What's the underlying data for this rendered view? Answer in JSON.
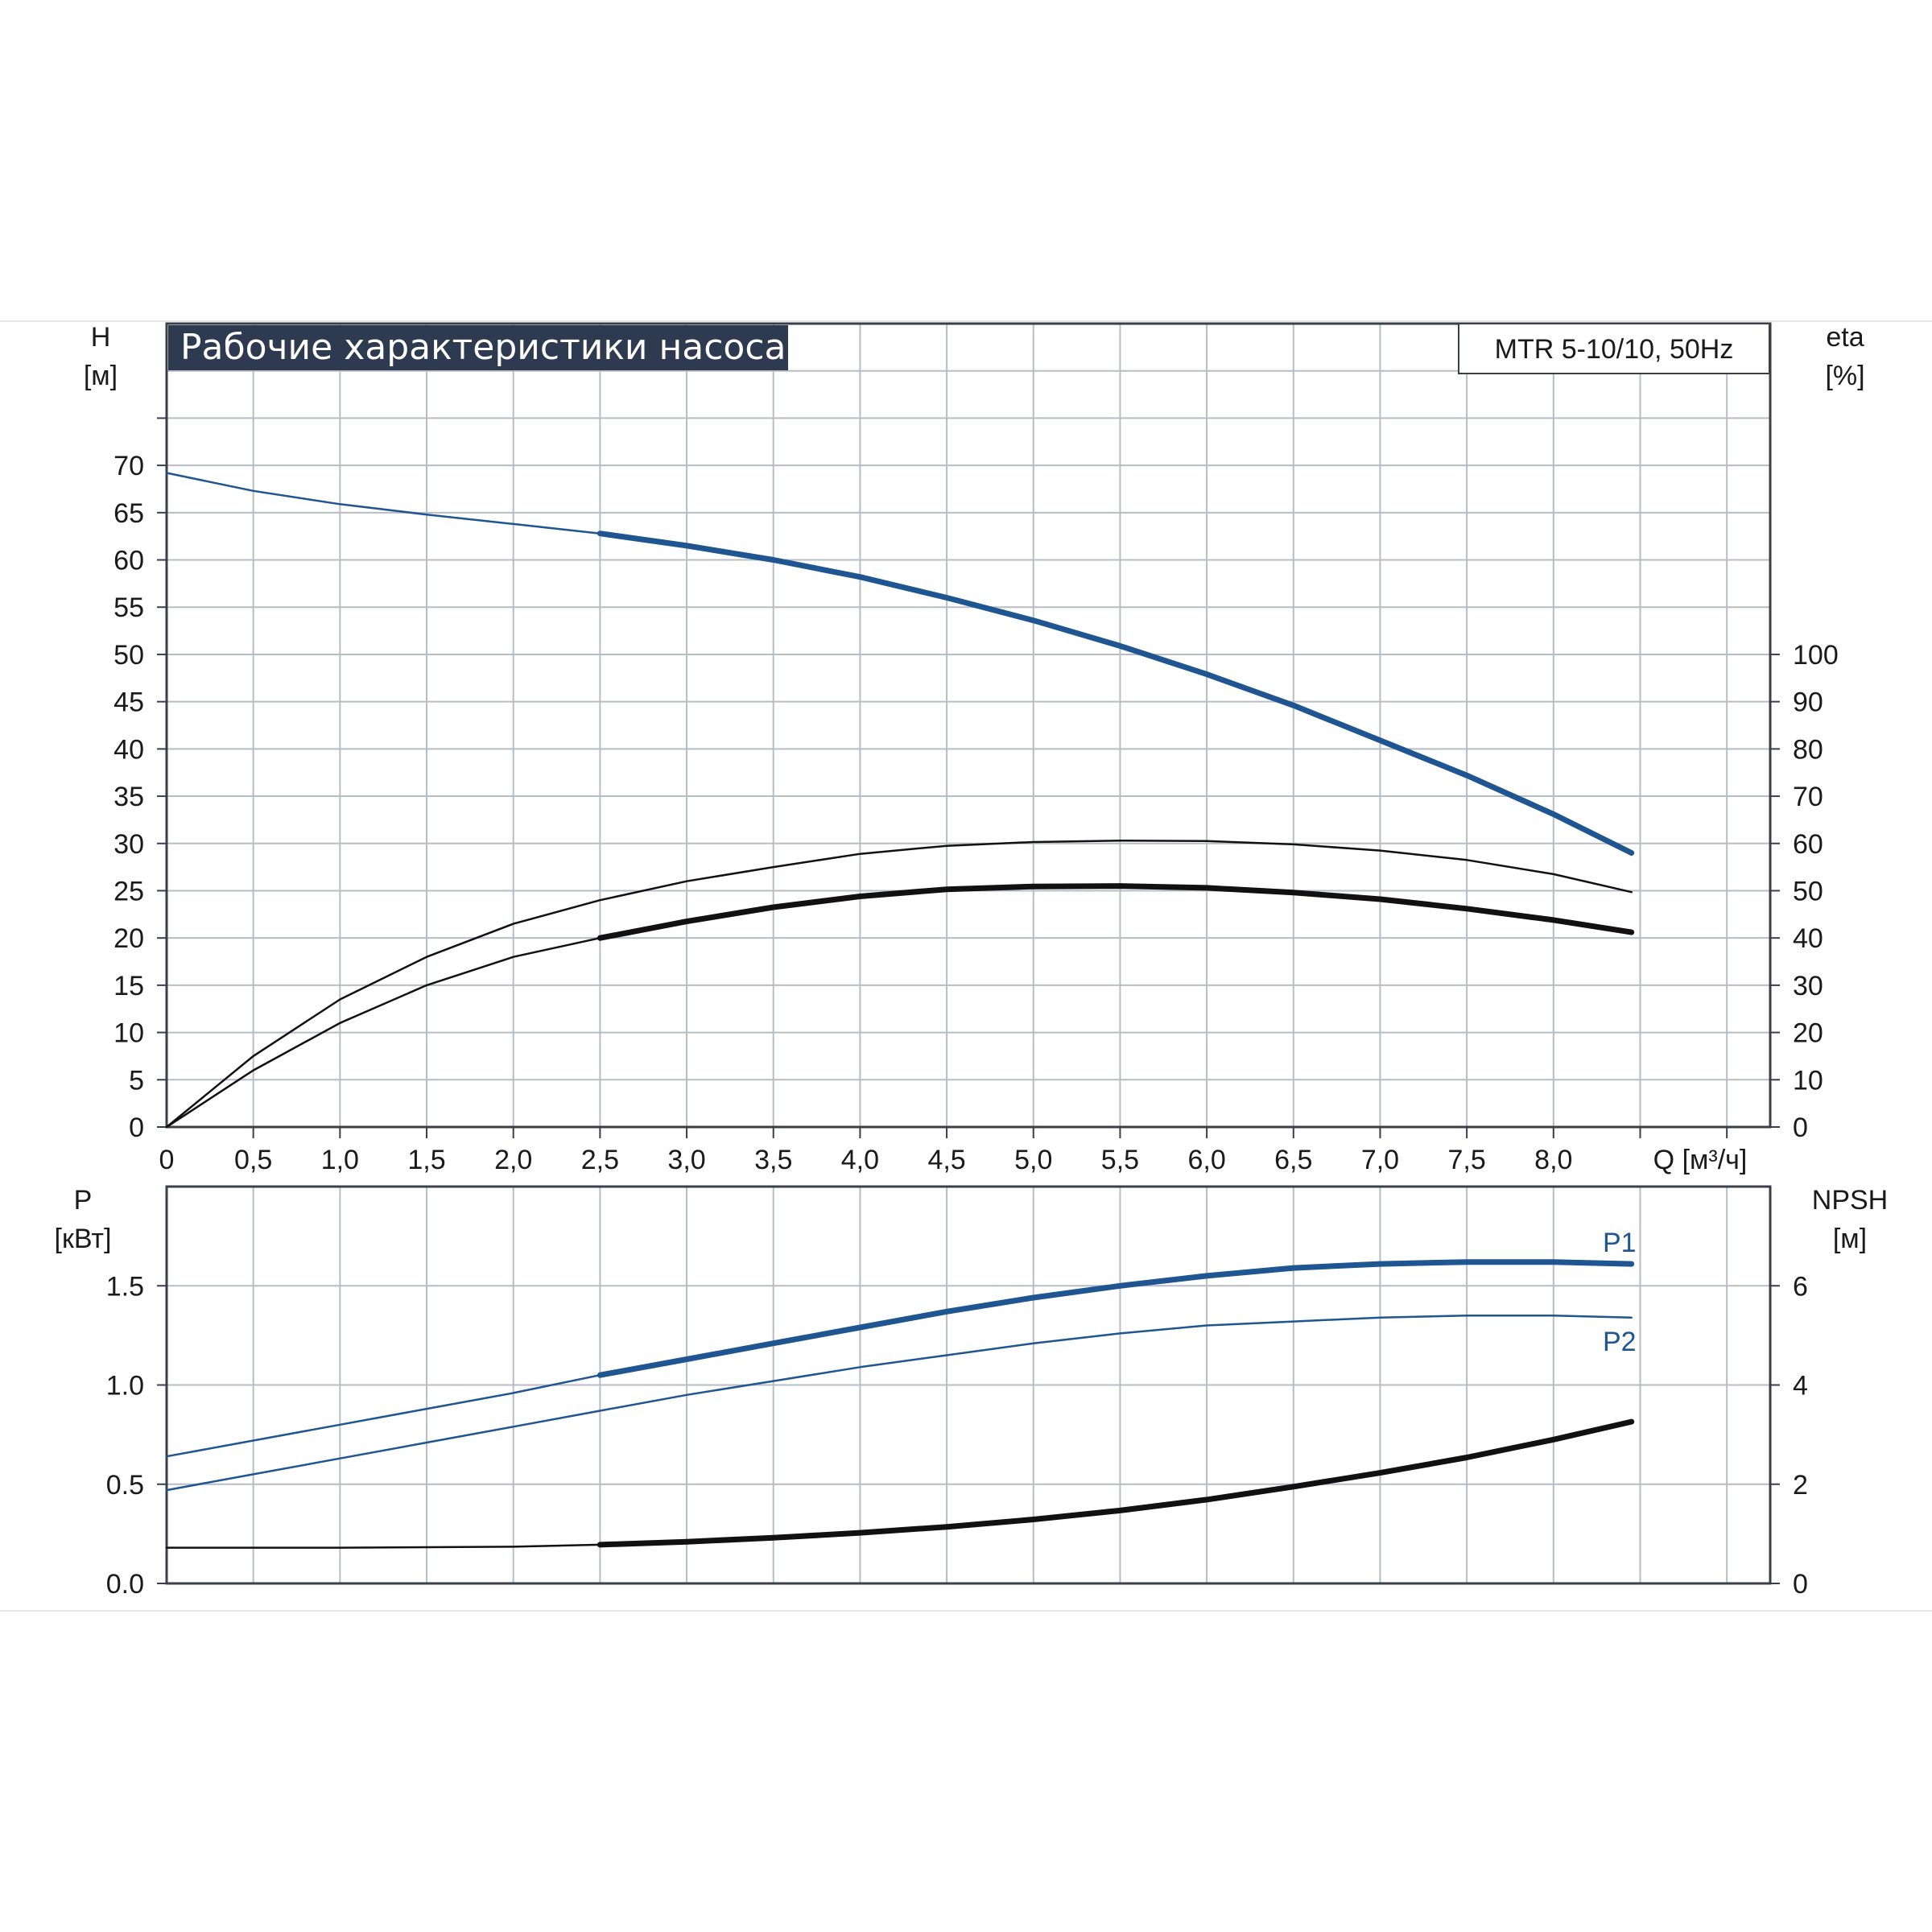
{
  "header": {
    "title": "Рабочие характеристики насоса",
    "model": "MTR 5-10/10, 50Hz"
  },
  "colors": {
    "grid": "#b8bcc4",
    "frame": "#3a3f4a",
    "title_bg": "#2e3a4f",
    "blue": "#1f5591",
    "black": "#111111"
  },
  "chart_data": [
    {
      "type": "line",
      "name": "top",
      "x_unit": "Q [м³/ч]",
      "x_range": [
        0,
        9.25
      ],
      "x_ticks": [
        {
          "v": 0,
          "label": "0"
        },
        {
          "v": 0.5,
          "label": "0,5"
        },
        {
          "v": 1.0,
          "label": "1,0"
        },
        {
          "v": 1.5,
          "label": "1,5"
        },
        {
          "v": 2.0,
          "label": "2,0"
        },
        {
          "v": 2.5,
          "label": "2,5"
        },
        {
          "v": 3.0,
          "label": "3,0"
        },
        {
          "v": 3.5,
          "label": "3,5"
        },
        {
          "v": 4.0,
          "label": "4,0"
        },
        {
          "v": 4.5,
          "label": "4,5"
        },
        {
          "v": 5.0,
          "label": "5,0"
        },
        {
          "v": 5.5,
          "label": "5,5"
        },
        {
          "v": 6.0,
          "label": "6,0"
        },
        {
          "v": 6.5,
          "label": "6,5"
        },
        {
          "v": 7.0,
          "label": "7,0"
        },
        {
          "v": 7.5,
          "label": "7,5"
        },
        {
          "v": 8.0,
          "label": "8,0"
        }
      ],
      "y_left": {
        "label_line1": "H",
        "label_line2": "[м]",
        "range": [
          0,
          85
        ],
        "ticks": [
          0,
          5,
          10,
          15,
          20,
          25,
          30,
          35,
          40,
          45,
          50,
          55,
          60,
          65,
          70
        ]
      },
      "y_right": {
        "label_line1": "eta",
        "label_line2": "[%]",
        "range": [
          0,
          170
        ],
        "ticks": [
          0,
          10,
          20,
          30,
          40,
          50,
          60,
          70,
          80,
          90,
          100
        ]
      },
      "grid": true,
      "series": [
        {
          "key": "head",
          "axis": "left",
          "color": "blue",
          "thin_until": 2.5,
          "x": [
            0,
            0.5,
            1.0,
            1.5,
            2.0,
            2.5,
            3.0,
            3.5,
            4.0,
            4.5,
            5.0,
            5.5,
            6.0,
            6.5,
            7.0,
            7.5,
            8.0,
            8.45
          ],
          "y": [
            69.2,
            67.3,
            65.9,
            64.8,
            63.8,
            62.8,
            61.5,
            60.0,
            58.2,
            56.0,
            53.6,
            50.9,
            47.9,
            44.6,
            40.9,
            37.2,
            33.1,
            29.0
          ]
        },
        {
          "key": "eta_upper",
          "axis": "right",
          "color": "black",
          "thin_until": 9,
          "x": [
            0,
            0.5,
            1.0,
            1.5,
            2.0,
            2.5,
            3.0,
            3.5,
            4.0,
            4.5,
            5.0,
            5.5,
            6.0,
            6.5,
            7.0,
            7.5,
            8.0,
            8.45
          ],
          "y": [
            0,
            15,
            27,
            36,
            43,
            48,
            52,
            55,
            57.8,
            59.5,
            60.3,
            60.6,
            60.5,
            59.8,
            58.5,
            56.5,
            53.5,
            49.7
          ]
        },
        {
          "key": "eta_lower",
          "axis": "right",
          "color": "black",
          "thin_until": 2.5,
          "x": [
            0,
            0.5,
            1.0,
            1.5,
            2.0,
            2.5,
            3.0,
            3.5,
            4.0,
            4.5,
            5.0,
            5.5,
            6.0,
            6.5,
            7.0,
            7.5,
            8.0,
            8.45
          ],
          "y": [
            0,
            12,
            22,
            30,
            36,
            40,
            43.5,
            46.5,
            48.8,
            50.3,
            50.9,
            51.0,
            50.6,
            49.6,
            48.2,
            46.2,
            43.8,
            41.2
          ]
        }
      ]
    },
    {
      "type": "line",
      "name": "bottom",
      "x_range": [
        0,
        9.25
      ],
      "y_left": {
        "label_line1": "P",
        "label_line2": "[кВт]",
        "range": [
          0,
          2.0
        ],
        "ticks": [
          {
            "v": 0,
            "label": "0.0"
          },
          {
            "v": 0.5,
            "label": "0.5"
          },
          {
            "v": 1.0,
            "label": "1.0"
          },
          {
            "v": 1.5,
            "label": "1.5"
          }
        ]
      },
      "y_right": {
        "label_line1": "NPSH",
        "label_line2": "[м]",
        "range": [
          0,
          8
        ],
        "ticks": [
          0,
          2,
          4,
          6
        ]
      },
      "grid": true,
      "series": [
        {
          "key": "p1",
          "name": "P1",
          "axis": "left",
          "color": "blue",
          "thin_until": 2.5,
          "x": [
            0,
            0.5,
            1.0,
            1.5,
            2.0,
            2.5,
            3.0,
            3.5,
            4.0,
            4.5,
            5.0,
            5.5,
            6.0,
            6.5,
            7.0,
            7.5,
            8.0,
            8.45
          ],
          "y": [
            0.64,
            0.72,
            0.8,
            0.88,
            0.96,
            1.05,
            1.13,
            1.21,
            1.29,
            1.37,
            1.44,
            1.5,
            1.55,
            1.59,
            1.61,
            1.62,
            1.62,
            1.61
          ]
        },
        {
          "key": "p2",
          "name": "P2",
          "axis": "left",
          "color": "blue",
          "thin_until": 9,
          "x": [
            0,
            0.5,
            1.0,
            1.5,
            2.0,
            2.5,
            3.0,
            3.5,
            4.0,
            4.5,
            5.0,
            5.5,
            6.0,
            6.5,
            7.0,
            7.5,
            8.0,
            8.45
          ],
          "y": [
            0.47,
            0.55,
            0.63,
            0.71,
            0.79,
            0.87,
            0.95,
            1.02,
            1.09,
            1.15,
            1.21,
            1.26,
            1.3,
            1.32,
            1.34,
            1.35,
            1.35,
            1.34
          ]
        },
        {
          "key": "npsh",
          "axis": "right",
          "color": "black",
          "thin_until": 2.5,
          "x": [
            0,
            0.5,
            1.0,
            1.5,
            2.0,
            2.5,
            3.0,
            3.5,
            4.0,
            4.5,
            5.0,
            5.5,
            6.0,
            6.5,
            7.0,
            7.5,
            8.0,
            8.45
          ],
          "y": [
            0.72,
            0.72,
            0.72,
            0.73,
            0.74,
            0.78,
            0.84,
            0.92,
            1.02,
            1.14,
            1.29,
            1.47,
            1.69,
            1.95,
            2.23,
            2.54,
            2.9,
            3.26
          ]
        }
      ]
    }
  ]
}
